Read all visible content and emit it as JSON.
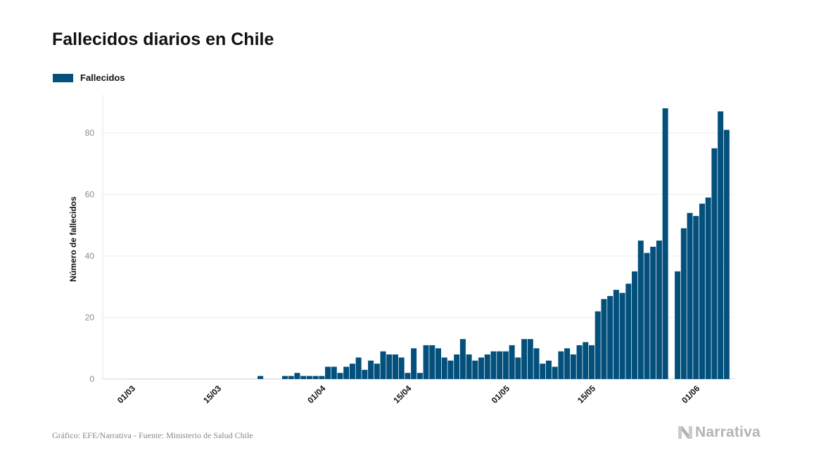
{
  "title": "Fallecidos diarios en Chile",
  "legend": {
    "label": "Fallecidos",
    "color": "#03507c"
  },
  "footer": {
    "credit": "Gráfico: EFE/Narrativa - Fuente: Ministerio de Salud Chile"
  },
  "logo": {
    "text": "Narrativa",
    "icon": "narrativa-n-icon"
  },
  "chart_data": {
    "type": "bar",
    "title": "Fallecidos diarios en Chile",
    "ylabel": "Número de fallecidos",
    "xlabel": "",
    "ylim": [
      0,
      92
    ],
    "yticks": [
      0,
      20,
      40,
      60,
      80
    ],
    "grid": true,
    "legend_position": "top-left",
    "xtick_labels": [
      {
        "label": "01/03",
        "index": 0
      },
      {
        "label": "15/03",
        "index": 14
      },
      {
        "label": "01/04",
        "index": 31
      },
      {
        "label": "15/04",
        "index": 45
      },
      {
        "label": "01/05",
        "index": 61
      },
      {
        "label": "15/05",
        "index": 75
      },
      {
        "label": "01/06",
        "index": 92
      }
    ],
    "series": [
      {
        "name": "Fallecidos",
        "color": "#03507c",
        "values": [
          0,
          0,
          0,
          0,
          0,
          0,
          0,
          0,
          0,
          0,
          0,
          0,
          0,
          0,
          0,
          0,
          0,
          0,
          0,
          0,
          0,
          1,
          0,
          0,
          0,
          1,
          1,
          2,
          1,
          1,
          1,
          1,
          4,
          4,
          2,
          4,
          5,
          7,
          3,
          6,
          5,
          9,
          8,
          8,
          7,
          2,
          10,
          2,
          11,
          11,
          10,
          7,
          6,
          8,
          13,
          8,
          6,
          7,
          8,
          9,
          9,
          9,
          11,
          7,
          13,
          13,
          10,
          5,
          6,
          4,
          9,
          10,
          8,
          11,
          12,
          11,
          22,
          26,
          27,
          29,
          28,
          31,
          35,
          45,
          41,
          43,
          45,
          88,
          0,
          35,
          49,
          54,
          53,
          57,
          59,
          75,
          87,
          81,
          0
        ]
      }
    ]
  }
}
